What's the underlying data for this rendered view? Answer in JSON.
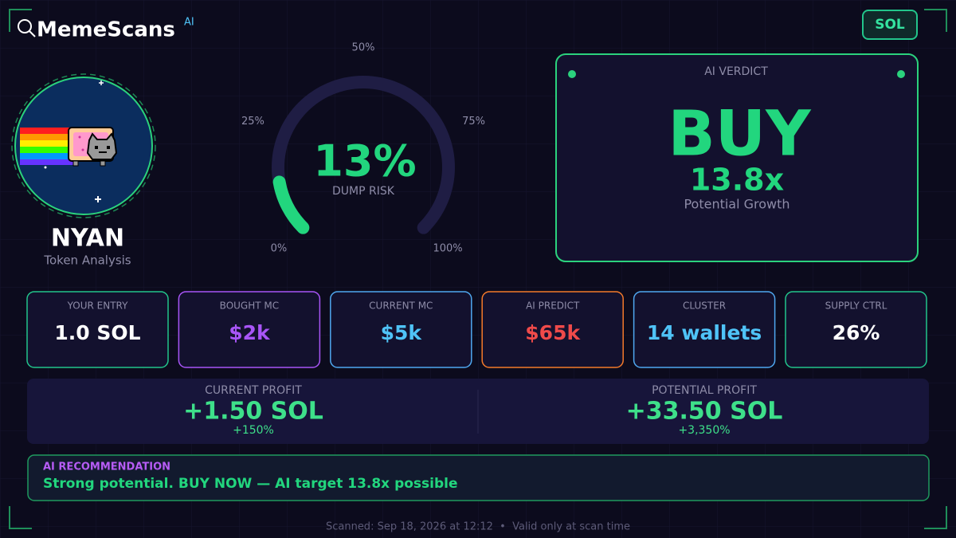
{
  "header": {
    "brand": "MemeScans",
    "brand_badge": "AI",
    "chain": "SOL"
  },
  "token": {
    "symbol": "NYAN",
    "subtitle": "Token Analysis"
  },
  "gauge": {
    "value": 13,
    "value_label": "13%",
    "label": "DUMP RISK",
    "ticks": [
      {
        "value": 0,
        "label": "0%"
      },
      {
        "value": 25,
        "label": "25%"
      },
      {
        "value": 50,
        "label": "50%"
      },
      {
        "value": 75,
        "label": "75%"
      },
      {
        "value": 100,
        "label": "100%"
      }
    ]
  },
  "verdict": {
    "title": "AI VERDICT",
    "action": "BUY",
    "multiplier": "13.8x",
    "caption": "Potential Growth"
  },
  "stats": [
    {
      "label": "YOUR ENTRY",
      "value": "1.0 SOL"
    },
    {
      "label": "BOUGHT MC",
      "value": "$2k"
    },
    {
      "label": "CURRENT MC",
      "value": "$5k"
    },
    {
      "label": "AI PREDICT",
      "value": "$65k"
    },
    {
      "label": "CLUSTER",
      "value": "14 wallets"
    },
    {
      "label": "SUPPLY CTRL",
      "value": "26%"
    }
  ],
  "profit": [
    {
      "label": "CURRENT PROFIT",
      "value": "+1.50 SOL",
      "percent": "+150%"
    },
    {
      "label": "POTENTIAL PROFIT",
      "value": "+33.50 SOL",
      "percent": "+3,350%"
    }
  ],
  "recommendation": {
    "title": "AI RECOMMENDATION",
    "text": "Strong potential. BUY NOW — AI target 13.8x possible"
  },
  "footer": {
    "text": "Scanned: Sep 18, 2026 at 12:12  •  Valid only at scan time"
  }
}
